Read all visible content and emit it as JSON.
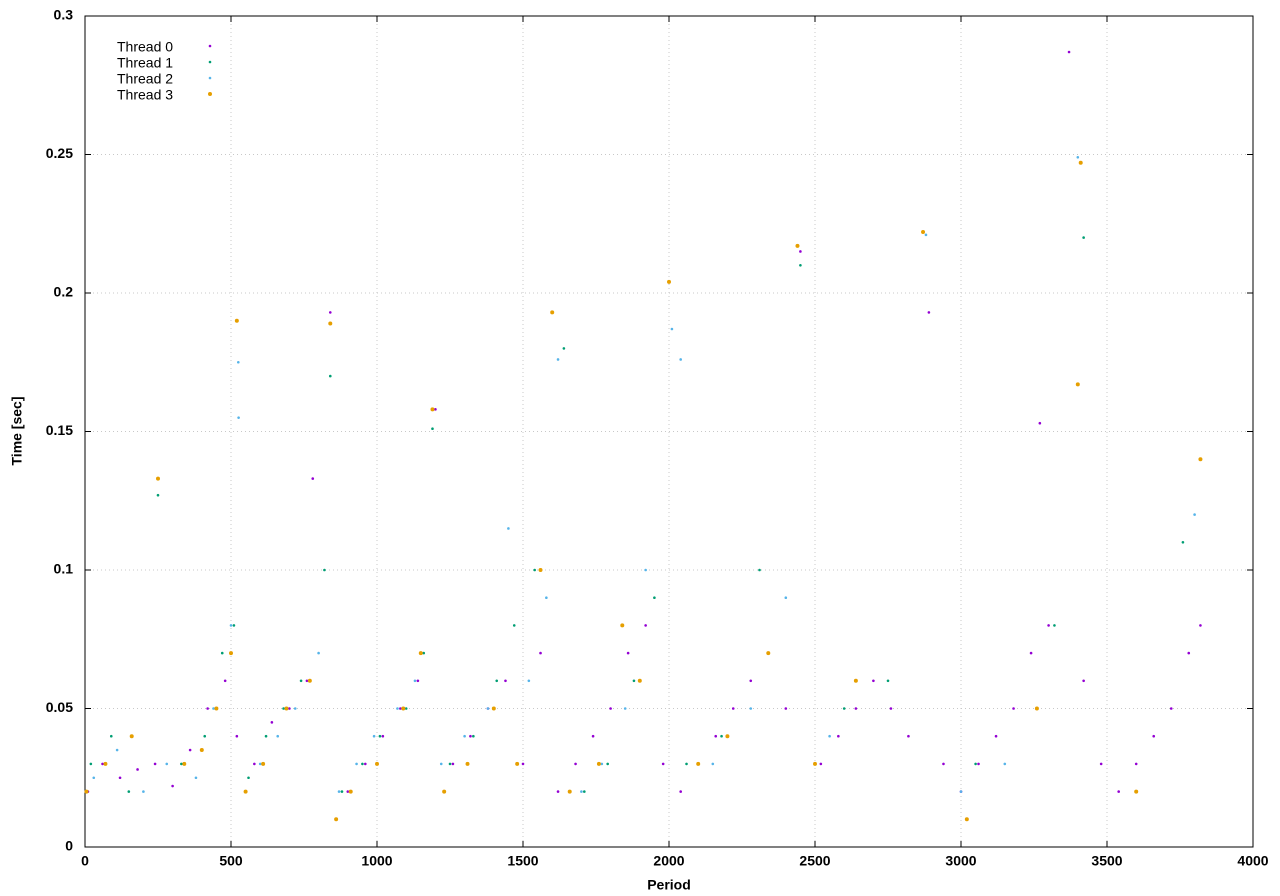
{
  "chart_data": {
    "type": "scatter",
    "xlabel": "Period",
    "ylabel": "Time [sec]",
    "xlim": [
      0,
      4000
    ],
    "ylim": [
      0,
      0.3
    ],
    "xticks": [
      0,
      500,
      1000,
      1500,
      2000,
      2500,
      3000,
      3500,
      4000
    ],
    "yticks": [
      0,
      0.05,
      0.1,
      0.15,
      0.2,
      0.25,
      0.3
    ],
    "grid": true,
    "legend": "upper left",
    "series": [
      {
        "name": "Thread 0",
        "color": "#9400d3",
        "x": [
          10,
          60,
          120,
          180,
          240,
          300,
          360,
          420,
          480,
          520,
          580,
          640,
          700,
          760,
          780,
          840,
          900,
          960,
          1020,
          1080,
          1140,
          1200,
          1260,
          1320,
          1380,
          1440,
          1500,
          1560,
          1620,
          1680,
          1740,
          1800,
          1860,
          1920,
          1980,
          2040,
          2100,
          2160,
          2220,
          2280,
          2340,
          2400,
          2450,
          2520,
          2580,
          2640,
          2700,
          2760,
          2820,
          2890,
          2940,
          3000,
          3060,
          3120,
          3180,
          3240,
          3270,
          3300,
          3370,
          3420,
          3480,
          3540,
          3600,
          3660,
          3720,
          3780,
          3820
        ],
        "values": [
          0.02,
          0.03,
          0.025,
          0.028,
          0.03,
          0.022,
          0.035,
          0.05,
          0.06,
          0.04,
          0.03,
          0.045,
          0.05,
          0.06,
          0.133,
          0.193,
          0.02,
          0.03,
          0.04,
          0.05,
          0.06,
          0.158,
          0.03,
          0.04,
          0.05,
          0.06,
          0.03,
          0.07,
          0.02,
          0.03,
          0.04,
          0.05,
          0.07,
          0.08,
          0.03,
          0.02,
          0.03,
          0.04,
          0.05,
          0.06,
          0.07,
          0.05,
          0.215,
          0.03,
          0.04,
          0.05,
          0.06,
          0.05,
          0.04,
          0.193,
          0.03,
          0.02,
          0.03,
          0.04,
          0.05,
          0.07,
          0.153,
          0.08,
          0.287,
          0.06,
          0.03,
          0.02,
          0.03,
          0.04,
          0.05,
          0.07,
          0.08
        ]
      },
      {
        "name": "Thread 1",
        "color": "#009e73",
        "x": [
          20,
          90,
          150,
          250,
          330,
          410,
          470,
          510,
          560,
          620,
          680,
          740,
          820,
          840,
          880,
          950,
          1010,
          1100,
          1160,
          1190,
          1250,
          1330,
          1410,
          1470,
          1540,
          1640,
          1710,
          1790,
          1880,
          1950,
          2060,
          2180,
          2310,
          2450,
          2600,
          2750,
          3050,
          3320,
          3420,
          3760
        ],
        "values": [
          0.03,
          0.04,
          0.02,
          0.127,
          0.03,
          0.04,
          0.07,
          0.08,
          0.025,
          0.04,
          0.05,
          0.06,
          0.1,
          0.17,
          0.02,
          0.03,
          0.04,
          0.05,
          0.07,
          0.151,
          0.03,
          0.04,
          0.06,
          0.08,
          0.1,
          0.18,
          0.02,
          0.03,
          0.06,
          0.09,
          0.03,
          0.04,
          0.1,
          0.21,
          0.05,
          0.06,
          0.03,
          0.08,
          0.22,
          0.11
        ]
      },
      {
        "name": "Thread 2",
        "color": "#56b4e9",
        "x": [
          30,
          110,
          200,
          280,
          380,
          440,
          500,
          525,
          526,
          600,
          660,
          720,
          800,
          870,
          930,
          990,
          1070,
          1130,
          1220,
          1300,
          1380,
          1450,
          1520,
          1580,
          1620,
          1700,
          1770,
          1850,
          1920,
          2010,
          2040,
          2150,
          2280,
          2400,
          2550,
          2880,
          3000,
          3150,
          3400,
          3800
        ],
        "values": [
          0.025,
          0.035,
          0.02,
          0.03,
          0.025,
          0.05,
          0.08,
          0.175,
          0.155,
          0.03,
          0.04,
          0.05,
          0.07,
          0.02,
          0.03,
          0.04,
          0.05,
          0.06,
          0.03,
          0.04,
          0.05,
          0.115,
          0.06,
          0.09,
          0.176,
          0.02,
          0.03,
          0.05,
          0.1,
          0.187,
          0.176,
          0.03,
          0.05,
          0.09,
          0.04,
          0.221,
          0.02,
          0.03,
          0.249,
          0.12
        ]
      },
      {
        "name": "Thread 3",
        "color": "#e69f00",
        "x": [
          5,
          70,
          160,
          250,
          340,
          400,
          450,
          500,
          520,
          550,
          610,
          690,
          770,
          840,
          860,
          910,
          1000,
          1090,
          1150,
          1190,
          1230,
          1310,
          1400,
          1480,
          1560,
          1600,
          1660,
          1760,
          1840,
          1900,
          2000,
          2100,
          2200,
          2340,
          2440,
          2500,
          2640,
          2870,
          3020,
          3260,
          3400,
          3410,
          3600,
          3820
        ],
        "values": [
          0.02,
          0.03,
          0.04,
          0.133,
          0.03,
          0.035,
          0.05,
          0.07,
          0.19,
          0.02,
          0.03,
          0.05,
          0.06,
          0.189,
          0.01,
          0.02,
          0.03,
          0.05,
          0.07,
          0.158,
          0.02,
          0.03,
          0.05,
          0.03,
          0.1,
          0.193,
          0.02,
          0.03,
          0.08,
          0.06,
          0.204,
          0.03,
          0.04,
          0.07,
          0.217,
          0.03,
          0.06,
          0.222,
          0.01,
          0.05,
          0.167,
          0.247,
          0.02,
          0.14
        ]
      }
    ]
  }
}
